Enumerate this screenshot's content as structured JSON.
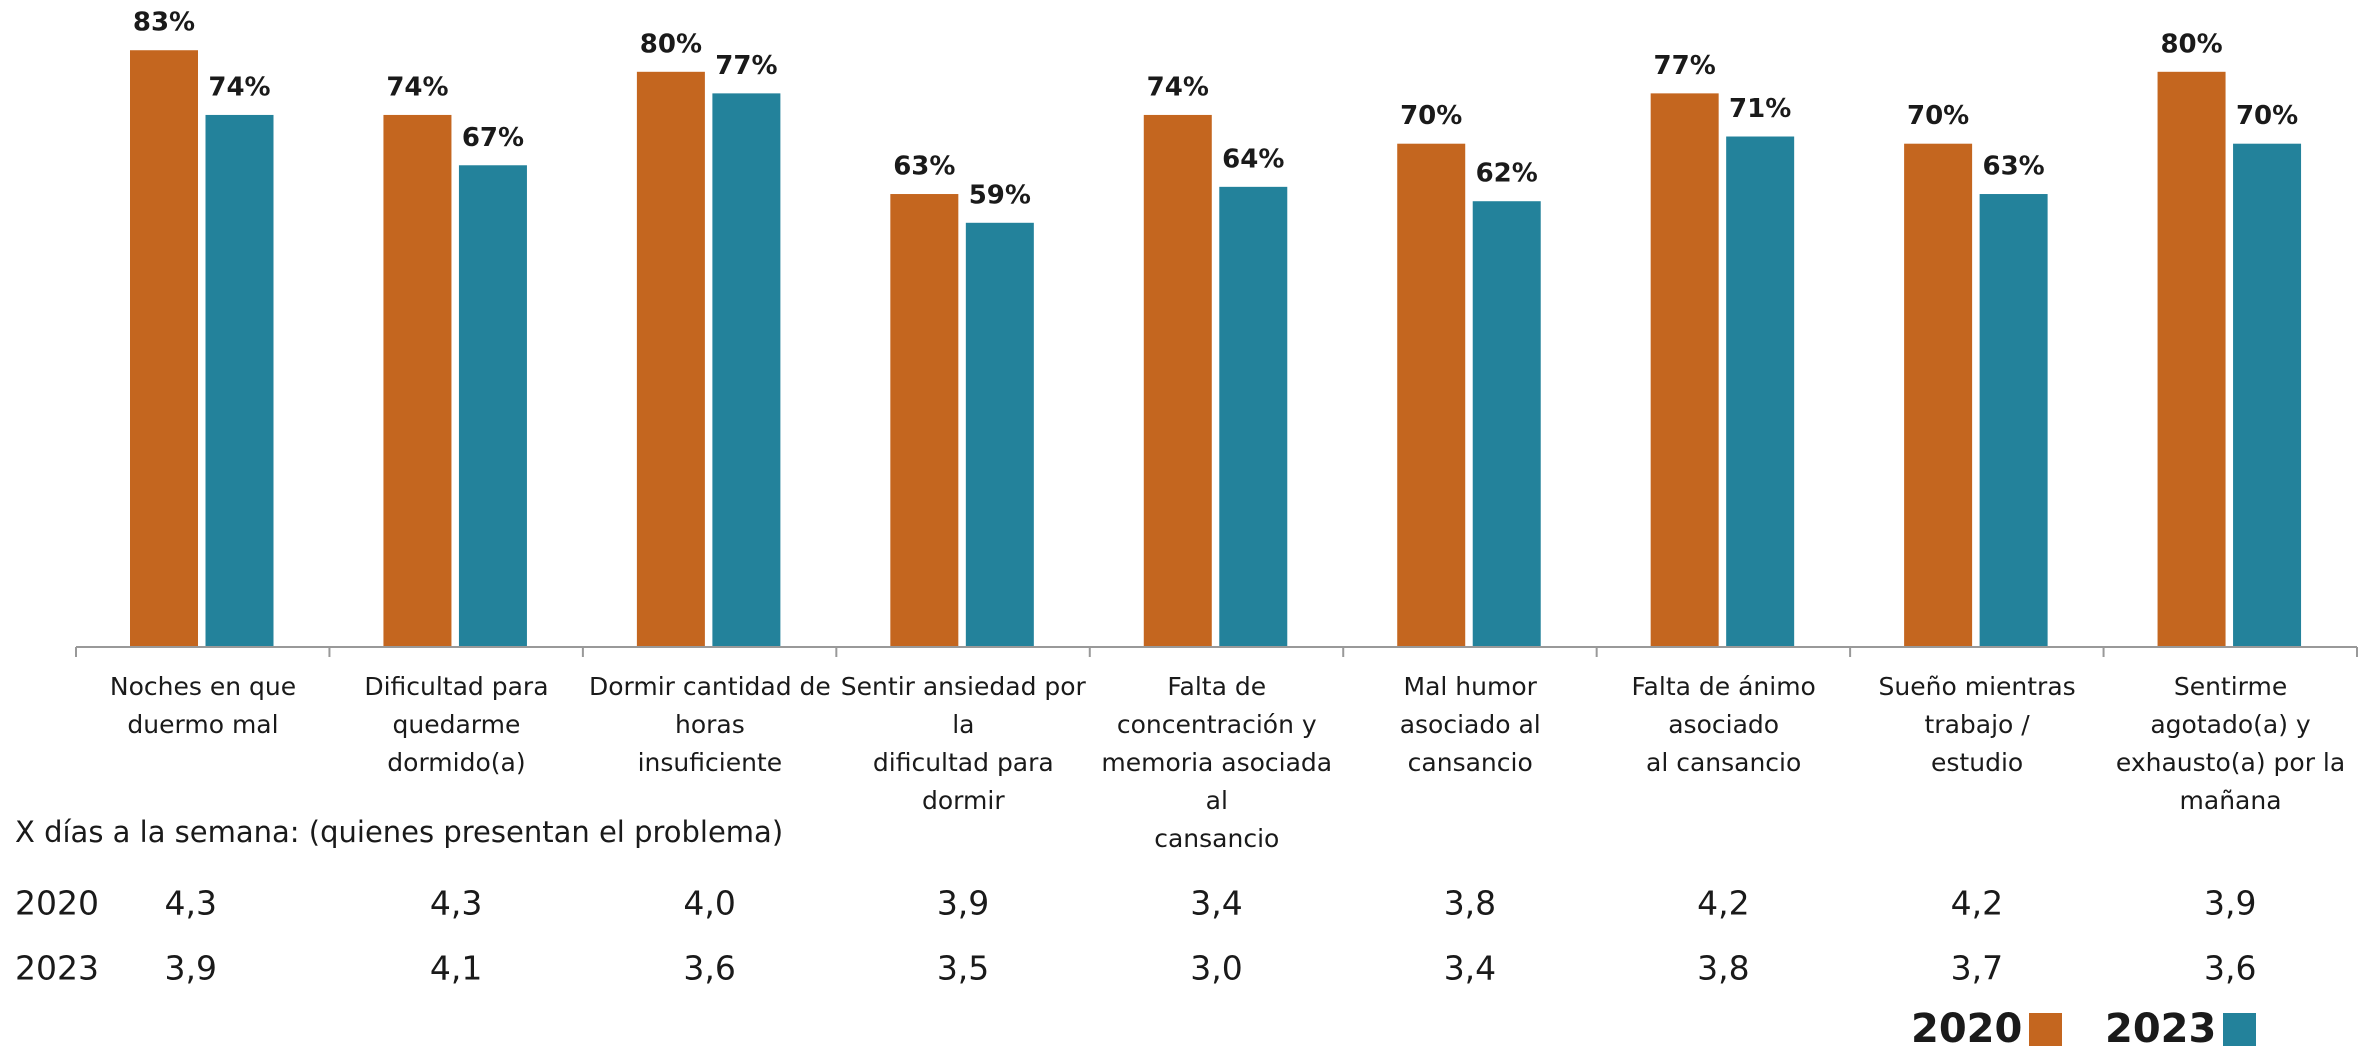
{
  "chart_data": {
    "type": "bar",
    "categories": [
      "Noches en que\nduermo mal",
      "Dificultad para\nquedarme\ndormido(a)",
      "Dormir cantidad de\nhoras\ninsuficiente",
      "Sentir ansiedad por\nla\ndificultad para\ndormir",
      "Falta de\nconcentración y\nmemoria asociada\nal\ncansancio",
      "Mal humor\nasociado al\ncansancio",
      "Falta de ánimo\nasociado\nal cansancio",
      "Sueño mientras\ntrabajo /\nestudio",
      "Sentirme\nagotado(a) y\nexhausto(a) por la\nmañana"
    ],
    "series": [
      {
        "name": "2020",
        "color": "#c4661f",
        "values": [
          83,
          74,
          80,
          63,
          74,
          70,
          77,
          70,
          80
        ],
        "value_labels": [
          "83%",
          "74%",
          "80%",
          "63%",
          "74%",
          "70%",
          "77%",
          "70%",
          "80%"
        ]
      },
      {
        "name": "2023",
        "color": "#23829b",
        "values": [
          74,
          67,
          77,
          59,
          64,
          62,
          71,
          63,
          70
        ],
        "value_labels": [
          "74%",
          "67%",
          "77%",
          "59%",
          "64%",
          "62%",
          "71%",
          "63%",
          "70%"
        ]
      }
    ],
    "legend": "bottom-right"
  },
  "table": {
    "title": "X días a la semana: (quienes presentan el problema)",
    "rows": [
      [
        "2020",
        "4,3",
        "4,3",
        "4,0",
        "3,9",
        "3,4",
        "3,8",
        "4,2",
        "4,2",
        "3,9"
      ],
      [
        "2023",
        "3,9",
        "4,1",
        "3,6",
        "3,5",
        "3,0",
        "3,4",
        "3,8",
        "3,7",
        "3,6"
      ]
    ]
  }
}
